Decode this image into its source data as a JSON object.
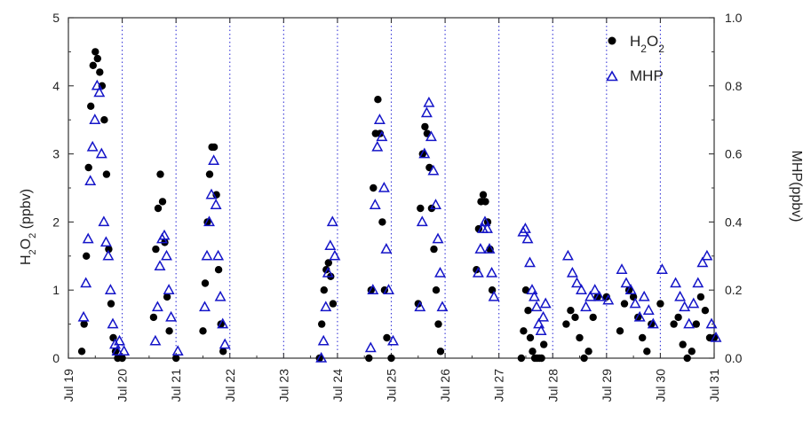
{
  "chart_data": {
    "type": "scatter",
    "title": "",
    "ylabel": "H2O2 (ppbv)",
    "ylabel_right": "MHP(ppbv)",
    "ylim": [
      0,
      5
    ],
    "ylim_right": [
      0,
      1.0
    ],
    "xlim": [
      "Jul 19",
      "Jul 31"
    ],
    "x_ticks": [
      "Jul 19",
      "Jul 20",
      "Jul 21",
      "Jul 22",
      "Jul 23",
      "Jul 24",
      "Jul 25",
      "Jul 26",
      "Jul 27",
      "Jul 28",
      "Jul 29",
      "Jul 30",
      "Jul 31"
    ],
    "y_ticks_left": [
      "0",
      "1",
      "2",
      "3",
      "4",
      "5"
    ],
    "y_ticks_right": [
      "0.0",
      "0.2",
      "0.4",
      "0.6",
      "0.8",
      "1.0"
    ],
    "day_separators": "dotted vertical lines at each day",
    "legend_position": "top-right",
    "series": [
      {
        "name": "H2O2",
        "marker": "filled-circle",
        "color": "#000000",
        "axis": "left",
        "x": [
          "Jul 19 06:00",
          "Jul 19 07:00",
          "Jul 19 08:00",
          "Jul 19 09:00",
          "Jul 19 10:00",
          "Jul 19 11:00",
          "Jul 19 12:00",
          "Jul 19 13:00",
          "Jul 19 14:00",
          "Jul 19 15:00",
          "Jul 19 16:00",
          "Jul 19 17:00",
          "Jul 19 18:00",
          "Jul 19 19:00",
          "Jul 19 20:00",
          "Jul 19 21:00",
          "Jul 19 22:00",
          "Jul 20 00:00",
          "Jul 20 14:00",
          "Jul 20 15:00",
          "Jul 20 16:00",
          "Jul 20 17:00",
          "Jul 20 18:00",
          "Jul 20 19:00",
          "Jul 20 20:00",
          "Jul 20 21:00",
          "Jul 21 00:00",
          "Jul 21 12:00",
          "Jul 21 13:00",
          "Jul 21 14:00",
          "Jul 21 15:00",
          "Jul 21 16:00",
          "Jul 21 17:00",
          "Jul 21 18:00",
          "Jul 21 19:00",
          "Jul 21 20:00",
          "Jul 21 21:00",
          "Jul 23 16:00",
          "Jul 23 17:00",
          "Jul 23 18:00",
          "Jul 23 19:00",
          "Jul 23 20:00",
          "Jul 23 21:00",
          "Jul 23 22:00",
          "Jul 24 14:00",
          "Jul 24 15:00",
          "Jul 24 16:00",
          "Jul 24 17:00",
          "Jul 24 18:00",
          "Jul 24 19:00",
          "Jul 24 20:00",
          "Jul 24 21:00",
          "Jul 24 22:00",
          "Jul 25 00:00",
          "Jul 25 12:00",
          "Jul 25 13:00",
          "Jul 25 14:00",
          "Jul 25 15:00",
          "Jul 25 16:00",
          "Jul 25 17:00",
          "Jul 25 18:00",
          "Jul 25 19:00",
          "Jul 25 20:00",
          "Jul 25 21:00",
          "Jul 25 22:00",
          "Jul 26 14:00",
          "Jul 26 15:00",
          "Jul 26 16:00",
          "Jul 26 17:00",
          "Jul 26 18:00",
          "Jul 26 19:00",
          "Jul 26 20:00",
          "Jul 26 21:00",
          "Jul 27 10:00",
          "Jul 27 11:00",
          "Jul 27 12:00",
          "Jul 27 13:00",
          "Jul 27 14:00",
          "Jul 27 15:00",
          "Jul 27 16:00",
          "Jul 27 17:00",
          "Jul 27 18:00",
          "Jul 27 19:00",
          "Jul 27 20:00",
          "Jul 28 06:00",
          "Jul 28 08:00",
          "Jul 28 10:00",
          "Jul 28 12:00",
          "Jul 28 14:00",
          "Jul 28 16:00",
          "Jul 28 18:00",
          "Jul 28 20:00",
          "Jul 29 00:00",
          "Jul 29 06:00",
          "Jul 29 08:00",
          "Jul 29 10:00",
          "Jul 29 12:00",
          "Jul 29 14:00",
          "Jul 29 16:00",
          "Jul 29 18:00",
          "Jul 29 20:00",
          "Jul 30 00:00",
          "Jul 30 06:00",
          "Jul 30 08:00",
          "Jul 30 10:00",
          "Jul 30 12:00",
          "Jul 30 14:00",
          "Jul 30 16:00",
          "Jul 30 18:00",
          "Jul 30 20:00",
          "Jul 30 22:00",
          "Jul 31 00:00"
        ],
        "y": [
          0.1,
          0.5,
          1.5,
          2.8,
          3.7,
          4.3,
          4.5,
          4.4,
          4.2,
          4.0,
          3.5,
          2.7,
          1.6,
          0.8,
          0.3,
          0.1,
          0.0,
          0.0,
          0.6,
          1.6,
          2.2,
          2.7,
          2.3,
          1.7,
          0.9,
          0.4,
          0.0,
          0.4,
          1.1,
          2.0,
          2.7,
          3.1,
          3.1,
          2.4,
          1.3,
          0.5,
          0.1,
          0.0,
          0.5,
          1.0,
          1.3,
          1.4,
          1.2,
          0.8,
          0.0,
          1.0,
          2.5,
          3.3,
          3.8,
          3.3,
          2.0,
          1.0,
          0.3,
          0.0,
          0.8,
          2.2,
          3.0,
          3.4,
          3.3,
          2.8,
          2.2,
          1.6,
          1.0,
          0.5,
          0.1,
          1.3,
          1.9,
          2.3,
          2.4,
          2.3,
          2.0,
          1.6,
          1.0,
          0.0,
          0.4,
          1.0,
          0.7,
          0.3,
          0.1,
          0.0,
          0.0,
          0.0,
          0.0,
          0.2,
          0.5,
          0.7,
          0.6,
          0.3,
          0.0,
          0.1,
          0.6,
          0.9,
          0.9,
          0.4,
          0.8,
          1.0,
          0.9,
          0.6,
          0.3,
          0.1,
          0.5,
          0.8,
          0.5,
          0.6,
          0.2,
          0.0,
          0.1,
          0.5,
          0.9,
          0.7,
          0.3,
          0.3
        ]
      },
      {
        "name": "MHP",
        "marker": "open-triangle",
        "color": "#1414c8",
        "axis": "right",
        "x": [
          "Jul 19 06:00",
          "Jul 19 07:00",
          "Jul 19 08:00",
          "Jul 19 09:00",
          "Jul 19 10:00",
          "Jul 19 11:00",
          "Jul 19 12:00",
          "Jul 19 13:00",
          "Jul 19 14:00",
          "Jul 19 15:00",
          "Jul 19 16:00",
          "Jul 19 17:00",
          "Jul 19 18:00",
          "Jul 19 19:00",
          "Jul 19 20:00",
          "Jul 19 21:00",
          "Jul 19 22:00",
          "Jul 20 00:00",
          "Jul 20 14:00",
          "Jul 20 15:00",
          "Jul 20 16:00",
          "Jul 20 17:00",
          "Jul 20 18:00",
          "Jul 20 19:00",
          "Jul 20 20:00",
          "Jul 20 21:00",
          "Jul 21 00:00",
          "Jul 21 12:00",
          "Jul 21 13:00",
          "Jul 21 14:00",
          "Jul 21 15:00",
          "Jul 21 16:00",
          "Jul 21 17:00",
          "Jul 21 18:00",
          "Jul 21 19:00",
          "Jul 21 20:00",
          "Jul 21 21:00",
          "Jul 23 16:00",
          "Jul 23 17:00",
          "Jul 23 18:00",
          "Jul 23 19:00",
          "Jul 23 20:00",
          "Jul 23 21:00",
          "Jul 23 22:00",
          "Jul 24 14:00",
          "Jul 24 15:00",
          "Jul 24 16:00",
          "Jul 24 17:00",
          "Jul 24 18:00",
          "Jul 24 19:00",
          "Jul 24 20:00",
          "Jul 24 21:00",
          "Jul 24 22:00",
          "Jul 25 00:00",
          "Jul 25 12:00",
          "Jul 25 13:00",
          "Jul 25 14:00",
          "Jul 25 15:00",
          "Jul 25 16:00",
          "Jul 25 17:00",
          "Jul 25 18:00",
          "Jul 25 19:00",
          "Jul 25 20:00",
          "Jul 25 21:00",
          "Jul 25 22:00",
          "Jul 26 14:00",
          "Jul 26 15:00",
          "Jul 26 16:00",
          "Jul 26 17:00",
          "Jul 26 18:00",
          "Jul 26 19:00",
          "Jul 26 20:00",
          "Jul 26 21:00",
          "Jul 27 10:00",
          "Jul 27 11:00",
          "Jul 27 12:00",
          "Jul 27 13:00",
          "Jul 27 14:00",
          "Jul 27 15:00",
          "Jul 27 16:00",
          "Jul 27 17:00",
          "Jul 27 18:00",
          "Jul 27 19:00",
          "Jul 27 20:00",
          "Jul 28 06:00",
          "Jul 28 08:00",
          "Jul 28 10:00",
          "Jul 28 12:00",
          "Jul 28 14:00",
          "Jul 28 16:00",
          "Jul 28 18:00",
          "Jul 28 20:00",
          "Jul 29 00:00",
          "Jul 29 06:00",
          "Jul 29 08:00",
          "Jul 29 10:00",
          "Jul 29 12:00",
          "Jul 29 14:00",
          "Jul 29 16:00",
          "Jul 29 18:00",
          "Jul 29 20:00",
          "Jul 30 00:00",
          "Jul 30 06:00",
          "Jul 30 08:00",
          "Jul 30 10:00",
          "Jul 30 12:00",
          "Jul 30 14:00",
          "Jul 30 16:00",
          "Jul 30 18:00",
          "Jul 30 20:00",
          "Jul 30 22:00",
          "Jul 31 00:00"
        ],
        "y": [
          0.12,
          0.22,
          0.35,
          0.52,
          0.62,
          0.7,
          0.8,
          0.78,
          0.6,
          0.4,
          0.34,
          0.3,
          0.2,
          0.1,
          0.04,
          0.02,
          0.05,
          0.02,
          0.05,
          0.15,
          0.27,
          0.35,
          0.36,
          0.3,
          0.2,
          0.12,
          0.02,
          0.15,
          0.3,
          0.4,
          0.48,
          0.58,
          0.45,
          0.3,
          0.18,
          0.1,
          0.04,
          0.0,
          0.05,
          0.15,
          0.25,
          0.33,
          0.4,
          0.3,
          0.03,
          0.2,
          0.45,
          0.62,
          0.7,
          0.65,
          0.5,
          0.32,
          0.2,
          0.05,
          0.15,
          0.4,
          0.6,
          0.72,
          0.75,
          0.65,
          0.55,
          0.45,
          0.35,
          0.25,
          0.15,
          0.25,
          0.32,
          0.38,
          0.4,
          0.38,
          0.32,
          0.25,
          0.18,
          0.37,
          0.38,
          0.35,
          0.28,
          0.2,
          0.18,
          0.15,
          0.1,
          0.08,
          0.12,
          0.16,
          0.3,
          0.25,
          0.22,
          0.2,
          0.15,
          0.18,
          0.2,
          0.18,
          0.17,
          0.26,
          0.22,
          0.2,
          0.16,
          0.12,
          0.18,
          0.14,
          0.1,
          0.26,
          0.22,
          0.18,
          0.15,
          0.1,
          0.16,
          0.22,
          0.28,
          0.3,
          0.1,
          0.06
        ]
      }
    ]
  }
}
